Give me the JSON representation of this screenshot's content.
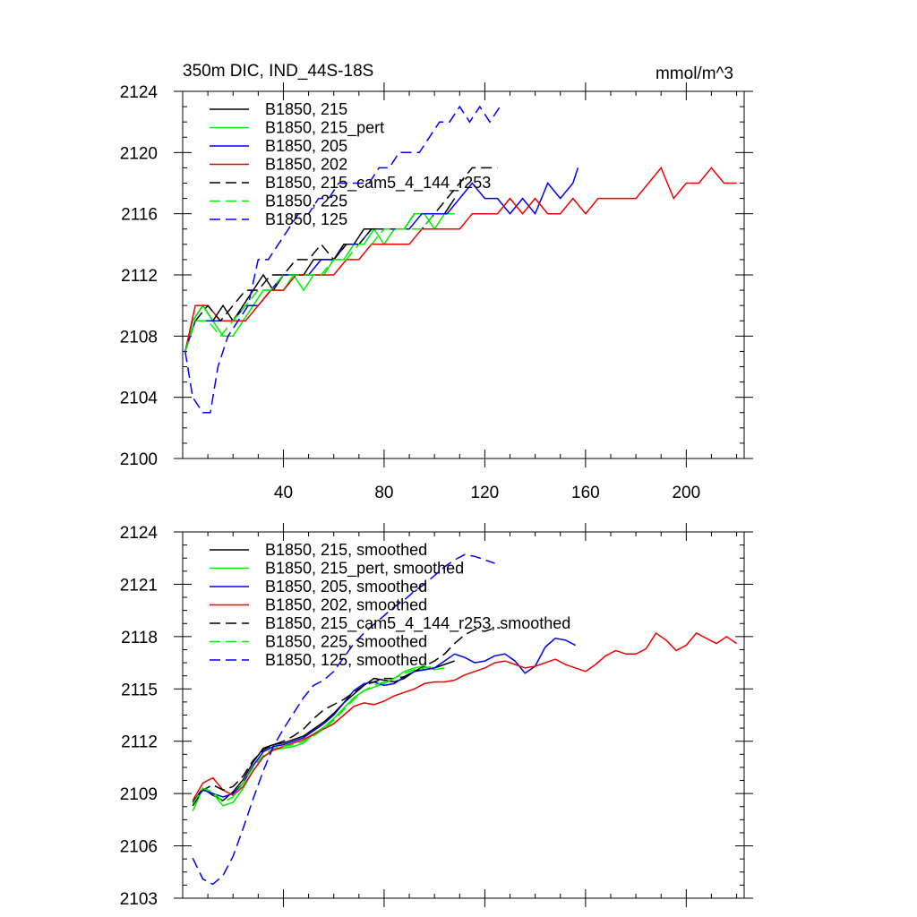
{
  "figure": {
    "title": "350m DIC, IND_44S-18S",
    "units": "mmol/m^3"
  },
  "chart_data": [
    {
      "type": "line",
      "title": "350m DIC, IND_44S-18S",
      "units_label": "mmol/m^3",
      "xlabel": "",
      "ylabel": "",
      "xlim": [
        0,
        223
      ],
      "ylim": [
        2100,
        2124
      ],
      "xticks": [
        40,
        80,
        120,
        160,
        200
      ],
      "yticks": [
        2100,
        2104,
        2108,
        2112,
        2116,
        2120,
        2124
      ],
      "ytick_labels": [
        "2100",
        "2104",
        "2108",
        "2112",
        "2116",
        "2120",
        "2124"
      ],
      "xtick_labels": [
        "40",
        "80",
        "120",
        "160",
        "200"
      ],
      "grid": false,
      "legend_position": "top-left",
      "series": [
        {
          "name": "B1850, 215",
          "color": "#000000",
          "dash": "solid",
          "x": [
            1,
            4,
            8,
            12,
            16,
            20,
            24,
            28,
            32,
            36,
            40,
            44,
            48,
            52,
            56,
            60,
            64,
            68,
            72,
            76,
            80,
            84,
            88,
            92,
            96,
            100,
            104,
            108
          ],
          "y": [
            2107,
            2109,
            2110,
            2109,
            2110,
            2109,
            2110,
            2111,
            2112,
            2111,
            2112,
            2112,
            2112,
            2113,
            2113,
            2113,
            2114,
            2114,
            2115,
            2115,
            2115,
            2115,
            2115,
            2116,
            2116,
            2116,
            2116,
            2117
          ]
        },
        {
          "name": "B1850, 215_pert",
          "color": "#00ee00",
          "dash": "solid",
          "x": [
            1,
            4,
            8,
            12,
            16,
            20,
            24,
            28,
            32,
            36,
            40,
            44,
            48,
            52,
            56,
            60,
            64,
            68,
            72,
            76,
            80,
            84,
            88,
            92,
            96,
            100,
            104,
            108
          ],
          "y": [
            2107,
            2109,
            2110,
            2109,
            2108,
            2108,
            2109,
            2110,
            2111,
            2111,
            2111,
            2112,
            2111,
            2112,
            2112,
            2113,
            2113,
            2114,
            2114,
            2115,
            2114,
            2115,
            2115,
            2116,
            2116,
            2115,
            2116,
            2116
          ]
        },
        {
          "name": "B1850, 205",
          "color": "#0000ee",
          "dash": "solid",
          "x": [
            1,
            5,
            10,
            15,
            20,
            25,
            30,
            35,
            40,
            45,
            50,
            55,
            60,
            65,
            70,
            75,
            80,
            85,
            90,
            95,
            100,
            105,
            110,
            115,
            120,
            125,
            130,
            135,
            140,
            145,
            150,
            155,
            157
          ],
          "y": [
            2107,
            2109,
            2109,
            2109,
            2109,
            2110,
            2110,
            2111,
            2112,
            2112,
            2112,
            2113,
            2113,
            2114,
            2114,
            2115,
            2115,
            2115,
            2115,
            2116,
            2116,
            2116,
            2117,
            2118,
            2117,
            2117,
            2116,
            2117,
            2116,
            2118,
            2117,
            2118,
            2119
          ]
        },
        {
          "name": "B1850, 202",
          "color": "#ee0000",
          "dash": "solid",
          "x": [
            1,
            5,
            10,
            15,
            20,
            25,
            30,
            35,
            40,
            45,
            50,
            55,
            60,
            65,
            70,
            75,
            80,
            85,
            90,
            95,
            100,
            105,
            110,
            115,
            120,
            125,
            130,
            135,
            140,
            145,
            150,
            155,
            160,
            165,
            170,
            175,
            180,
            185,
            190,
            195,
            200,
            205,
            210,
            215,
            220
          ],
          "y": [
            2107,
            2110,
            2110,
            2109,
            2109,
            2109,
            2110,
            2111,
            2111,
            2112,
            2112,
            2112,
            2112,
            2113,
            2113,
            2114,
            2114,
            2114,
            2114,
            2115,
            2115,
            2115,
            2115,
            2116,
            2116,
            2116,
            2117,
            2116,
            2117,
            2116,
            2116,
            2117,
            2116,
            2117,
            2117,
            2117,
            2117,
            2118,
            2119,
            2117,
            2118,
            2118,
            2119,
            2118,
            2118
          ]
        },
        {
          "name": "B1850, 215_cam5_4_144_r253",
          "color": "#000000",
          "dash": "dashed",
          "x": [
            1,
            5,
            10,
            15,
            20,
            25,
            30,
            35,
            40,
            45,
            50,
            55,
            60,
            65,
            70,
            75,
            80,
            85,
            90,
            95,
            100,
            105,
            110,
            115,
            120,
            125
          ],
          "y": [
            2107,
            2109,
            2110,
            2109,
            2110,
            2111,
            2111,
            2112,
            2112,
            2113,
            2113,
            2114,
            2113,
            2114,
            2114,
            2115,
            2115,
            2115,
            2115,
            2115,
            2116,
            2117,
            2118,
            2119,
            2119,
            2119
          ]
        },
        {
          "name": "B1850, 225",
          "color": "#00ee00",
          "dash": "dashed",
          "x": [
            1,
            5,
            10,
            15,
            20,
            25,
            30,
            35,
            40,
            45,
            50,
            55,
            60,
            65,
            70,
            75,
            80,
            85,
            90,
            95,
            100
          ],
          "y": [
            2107,
            2109,
            2109,
            2108,
            2109,
            2110,
            2111,
            2111,
            2112,
            2112,
            2112,
            2112,
            2113,
            2113,
            2114,
            2114,
            2115,
            2115,
            2115,
            2115,
            2116
          ]
        },
        {
          "name": "B1850, 125",
          "color": "#0000ee",
          "dash": "dashed",
          "x": [
            1,
            4,
            8,
            11,
            14,
            18,
            22,
            26,
            30,
            34,
            38,
            42,
            46,
            50,
            54,
            58,
            62,
            66,
            70,
            74,
            78,
            82,
            86,
            90,
            94,
            98,
            102,
            106,
            110,
            114,
            118,
            122,
            126
          ],
          "y": [
            2107,
            2104,
            2103,
            2103,
            2106,
            2108,
            2109,
            2110,
            2113,
            2113,
            2114,
            2115,
            2116,
            2116,
            2117,
            2117,
            2118,
            2118,
            2118,
            2118,
            2119,
            2119,
            2120,
            2120,
            2120,
            2121,
            2122,
            2122,
            2123,
            2122,
            2123,
            2122,
            2123
          ]
        }
      ]
    },
    {
      "type": "line",
      "title": "",
      "xlabel": "",
      "ylabel": "",
      "xlim": [
        0,
        223
      ],
      "ylim": [
        2103,
        2124
      ],
      "xticks": [
        40,
        80,
        120,
        160,
        200
      ],
      "yticks": [
        2103,
        2106,
        2109,
        2112,
        2115,
        2118,
        2121,
        2124
      ],
      "ytick_labels": [
        "2103",
        "2106",
        "2109",
        "2112",
        "2115",
        "2118",
        "2121",
        "2124"
      ],
      "grid": false,
      "legend_position": "top-left",
      "series": [
        {
          "name": "B1850, 215, smoothed",
          "color": "#000000",
          "dash": "solid",
          "x": [
            4,
            8,
            12,
            16,
            20,
            24,
            28,
            32,
            36,
            40,
            44,
            48,
            52,
            56,
            60,
            64,
            68,
            72,
            76,
            80,
            84,
            88,
            92,
            96,
            100,
            104,
            108
          ],
          "y": [
            2108.5,
            2109.3,
            2108.9,
            2108.6,
            2109.1,
            2109.8,
            2110.8,
            2111.6,
            2111.8,
            2111.9,
            2112.1,
            2112.3,
            2112.7,
            2113.1,
            2113.6,
            2114.2,
            2114.7,
            2115.2,
            2115.6,
            2115.5,
            2115.4,
            2115.6,
            2116.0,
            2116.1,
            2116.2,
            2116.4,
            2116.6
          ]
        },
        {
          "name": "B1850, 215_pert, smoothed",
          "color": "#00ee00",
          "dash": "solid",
          "x": [
            4,
            8,
            12,
            16,
            20,
            24,
            28,
            32,
            36,
            40,
            44,
            48,
            52,
            56,
            60,
            64,
            68,
            72,
            76,
            80,
            84,
            88,
            92,
            96,
            100,
            104
          ],
          "y": [
            2108.0,
            2109.3,
            2109.0,
            2108.3,
            2108.5,
            2109.3,
            2110.3,
            2111.1,
            2111.5,
            2111.6,
            2111.7,
            2111.9,
            2112.4,
            2112.8,
            2113.3,
            2113.9,
            2114.5,
            2114.9,
            2115.1,
            2115.3,
            2115.6,
            2116.0,
            2116.2,
            2116.3,
            2116.1,
            2116.2
          ]
        },
        {
          "name": "B1850, 205, smoothed",
          "color": "#0000ee",
          "dash": "solid",
          "x": [
            4,
            8,
            12,
            16,
            20,
            24,
            28,
            32,
            36,
            40,
            44,
            48,
            52,
            56,
            60,
            64,
            68,
            72,
            76,
            80,
            84,
            88,
            92,
            96,
            100,
            104,
            108,
            112,
            116,
            120,
            124,
            128,
            132,
            136,
            140,
            144,
            148,
            152,
            156
          ],
          "y": [
            2108.5,
            2109.2,
            2109.0,
            2108.8,
            2109.0,
            2109.6,
            2110.6,
            2111.4,
            2111.7,
            2111.8,
            2112.0,
            2112.2,
            2112.6,
            2113.0,
            2113.5,
            2114.2,
            2114.9,
            2115.3,
            2115.4,
            2115.2,
            2115.3,
            2115.7,
            2116.0,
            2116.1,
            2116.2,
            2116.6,
            2117.0,
            2116.8,
            2116.5,
            2116.6,
            2116.9,
            2117.0,
            2116.6,
            2115.9,
            2116.3,
            2117.4,
            2117.9,
            2117.8,
            2117.5
          ]
        },
        {
          "name": "B1850, 202, smoothed",
          "color": "#ee0000",
          "dash": "solid",
          "x": [
            4,
            8,
            12,
            16,
            20,
            24,
            28,
            32,
            36,
            40,
            44,
            48,
            52,
            56,
            60,
            64,
            68,
            72,
            76,
            80,
            84,
            88,
            92,
            96,
            100,
            104,
            108,
            112,
            116,
            120,
            124,
            128,
            132,
            136,
            140,
            144,
            148,
            152,
            156,
            160,
            164,
            168,
            172,
            176,
            180,
            184,
            188,
            192,
            196,
            200,
            204,
            208,
            212,
            216,
            220
          ],
          "y": [
            2108.6,
            2109.6,
            2109.9,
            2109.2,
            2108.9,
            2109.4,
            2110.3,
            2111.1,
            2111.5,
            2111.7,
            2111.9,
            2112.1,
            2112.4,
            2112.7,
            2113.0,
            2113.5,
            2114.0,
            2114.2,
            2114.1,
            2114.3,
            2114.6,
            2114.8,
            2115.0,
            2115.3,
            2115.4,
            2115.4,
            2115.5,
            2115.8,
            2116.0,
            2116.2,
            2116.5,
            2116.6,
            2116.4,
            2116.2,
            2116.3,
            2116.5,
            2116.7,
            2116.4,
            2116.2,
            2116.0,
            2116.4,
            2116.9,
            2117.2,
            2117.0,
            2117.0,
            2117.3,
            2118.2,
            2117.8,
            2117.2,
            2117.5,
            2118.2,
            2117.9,
            2117.6,
            2118.0,
            2117.6
          ]
        },
        {
          "name": "B1850, 215_cam5_4_144_r253, smoothed",
          "color": "#000000",
          "dash": "dashed",
          "x": [
            4,
            8,
            12,
            16,
            20,
            24,
            28,
            32,
            36,
            40,
            44,
            48,
            52,
            56,
            60,
            64,
            68,
            72,
            76,
            80,
            84,
            88,
            92,
            96,
            100,
            104,
            108,
            112,
            116,
            120,
            124,
            126
          ],
          "y": [
            2108.3,
            2109.2,
            2109.5,
            2109.2,
            2109.4,
            2110.0,
            2110.9,
            2111.5,
            2111.8,
            2112.0,
            2112.3,
            2112.7,
            2113.3,
            2113.8,
            2114.1,
            2114.4,
            2114.8,
            2115.2,
            2115.4,
            2115.6,
            2115.6,
            2115.7,
            2116.0,
            2116.3,
            2116.6,
            2117.0,
            2117.6,
            2118.1,
            2118.4,
            2118.3,
            2118.5,
            2118.5
          ]
        },
        {
          "name": "B1850, 225, smoothed",
          "color": "#00ee00",
          "dash": "dashed",
          "x": [
            4,
            8,
            12,
            16,
            20,
            24,
            28,
            32,
            36,
            40,
            44,
            48,
            52,
            56,
            60,
            64,
            68,
            72,
            76,
            80,
            84,
            88,
            92,
            96,
            100
          ],
          "y": [
            2108.4,
            2109.3,
            2109.1,
            2108.5,
            2108.8,
            2109.6,
            2110.5,
            2111.2,
            2111.6,
            2111.7,
            2111.8,
            2112.0,
            2112.3,
            2112.7,
            2113.2,
            2113.8,
            2114.4,
            2114.9,
            2115.2,
            2115.4,
            2115.6,
            2115.9,
            2116.1,
            2116.2,
            2116.3
          ]
        },
        {
          "name": "B1850, 125, smoothed",
          "color": "#0000ee",
          "dash": "dashed",
          "x": [
            4,
            8,
            12,
            16,
            20,
            24,
            28,
            32,
            36,
            40,
            44,
            48,
            52,
            56,
            60,
            64,
            68,
            72,
            76,
            80,
            84,
            88,
            92,
            96,
            100,
            104,
            108,
            112,
            116,
            120,
            124
          ],
          "y": [
            2105.3,
            2104.1,
            2103.8,
            2104.3,
            2105.4,
            2107.0,
            2108.7,
            2110.3,
            2111.7,
            2112.7,
            2113.6,
            2114.5,
            2115.2,
            2115.5,
            2116.0,
            2116.8,
            2117.6,
            2118.2,
            2118.7,
            2119.2,
            2119.7,
            2120.1,
            2120.6,
            2121.0,
            2121.5,
            2122.0,
            2122.4,
            2122.7,
            2122.6,
            2122.4,
            2122.2
          ]
        }
      ]
    }
  ]
}
